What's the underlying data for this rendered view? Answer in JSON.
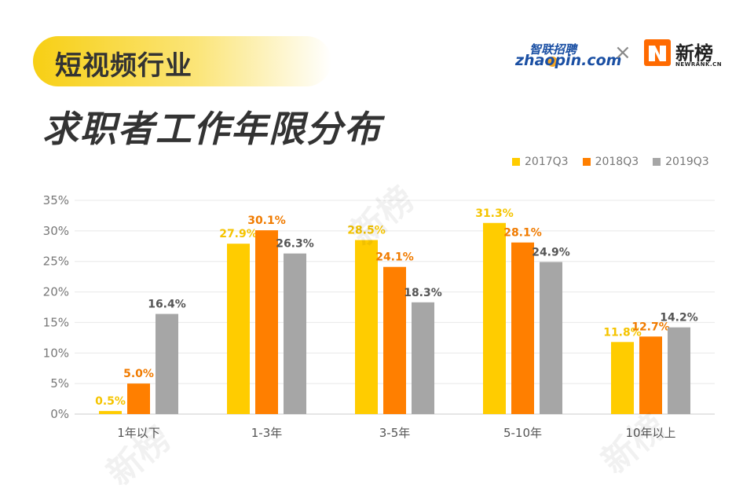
{
  "header": {
    "tag": "短视频行业",
    "title": "求职者工作年限分布"
  },
  "logos": {
    "zhaopin_cn": "智联招聘",
    "zhaopin_en": "zhaopin.com",
    "separator": "×",
    "newrank_cn": "新榜",
    "newrank_en": "NEWRANK.CN"
  },
  "colors": {
    "s2017": "#ffcc00",
    "s2018": "#ff7f00",
    "s2019": "#a6a6a6",
    "label2017": "#f5c400",
    "label2018": "#f07b00",
    "label2019": "#555555"
  },
  "chart_data": {
    "type": "bar",
    "categories": [
      "1年以下",
      "1-3年",
      "3-5年",
      "5-10年",
      "10年以上"
    ],
    "series": [
      {
        "name": "2017Q3",
        "values": [
          0.5,
          27.9,
          28.5,
          31.3,
          11.8
        ]
      },
      {
        "name": "2018Q3",
        "values": [
          5.0,
          30.1,
          24.1,
          28.1,
          12.7
        ]
      },
      {
        "name": "2019Q3",
        "values": [
          16.4,
          26.3,
          18.3,
          24.9,
          14.2
        ]
      }
    ],
    "ylim": [
      0,
      35
    ],
    "yticks": [
      0,
      5,
      10,
      15,
      20,
      25,
      30,
      35
    ],
    "ytick_labels": [
      "0%",
      "5%",
      "10%",
      "15%",
      "20%",
      "25%",
      "30%",
      "35%"
    ],
    "value_labels": [
      [
        "0.5%",
        "27.9%",
        "28.5%",
        "31.3%",
        "11.8%"
      ],
      [
        "5.0%",
        "30.1%",
        "24.1%",
        "28.1%",
        "12.7%"
      ],
      [
        "16.4%",
        "26.3%",
        "18.3%",
        "24.9%",
        "14.2%"
      ]
    ],
    "legend_position": "top-right",
    "grid": true
  }
}
